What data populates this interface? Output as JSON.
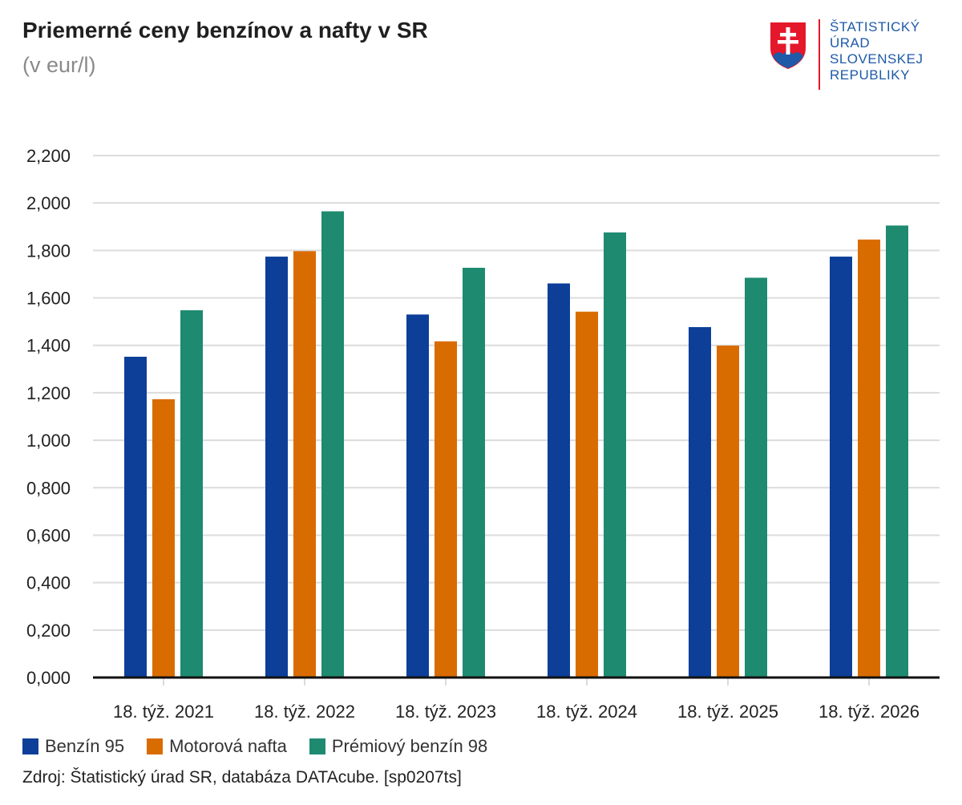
{
  "header": {
    "title": "Priemerné ceny benzínov a nafty v SR",
    "subtitle": "(v eur/l)"
  },
  "logo": {
    "icon": "slovak-coat-of-arms-icon",
    "lines": [
      "ŠTATISTICKÝ",
      "ÚRAD",
      "SLOVENSKEJ",
      "REPUBLIKY"
    ]
  },
  "colors": {
    "benzin95": "#0d3f99",
    "nafta": "#d96c00",
    "premium98": "#1e8a70",
    "logo_text": "#1e5aa8",
    "logo_divider": "#e5182b"
  },
  "chart_data": {
    "type": "bar",
    "title": "Priemerné ceny benzínov a nafty v SR",
    "subtitle": "(v eur/l)",
    "categories": [
      "18. týž. 2021",
      "18. týž. 2022",
      "18. týž. 2023",
      "18. týž. 2024",
      "18. týž. 2025",
      "18. týž. 2026"
    ],
    "series": [
      {
        "name": "Benzín 95",
        "color": "#0d3f99",
        "values": [
          1.352,
          1.774,
          1.53,
          1.661,
          1.477,
          1.774
        ]
      },
      {
        "name": "Motorová nafta",
        "color": "#d96c00",
        "values": [
          1.173,
          1.797,
          1.417,
          1.542,
          1.399,
          1.846
        ]
      },
      {
        "name": "Prémiový benzín 98",
        "color": "#1e8a70",
        "values": [
          1.548,
          1.965,
          1.727,
          1.876,
          1.685,
          1.905
        ]
      }
    ],
    "ylim": [
      0,
      2.2
    ],
    "yticks": [
      "0,000",
      "0,200",
      "0,400",
      "0,600",
      "0,800",
      "1,000",
      "1,200",
      "1,400",
      "1,600",
      "1,800",
      "2,000",
      "2,200"
    ],
    "grid": true,
    "legend_position": "bottom-left"
  },
  "source": "Zdroj: Štatistický úrad SR, databáza DATAcube. [sp0207ts]"
}
